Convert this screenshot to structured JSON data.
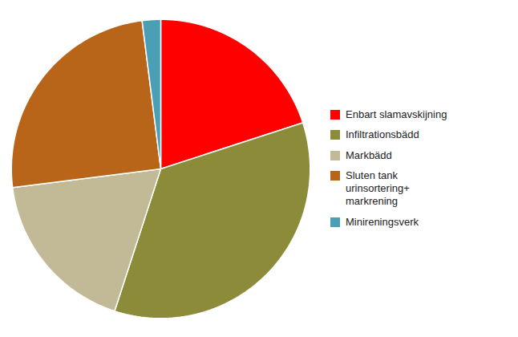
{
  "chart_data": {
    "type": "pie",
    "categories": [
      "Enbart slamavskijning",
      "Infiltrationsbädd",
      "Markbädd",
      "Sluten tank\nurinsortering+\nmarkrening",
      "Minireningsverk"
    ],
    "values": [
      20,
      35,
      18,
      25,
      2
    ],
    "colors": [
      "#FF0000",
      "#8B8B3A",
      "#C2BA96",
      "#B8651A",
      "#4A9FB5"
    ],
    "legend": "right"
  }
}
